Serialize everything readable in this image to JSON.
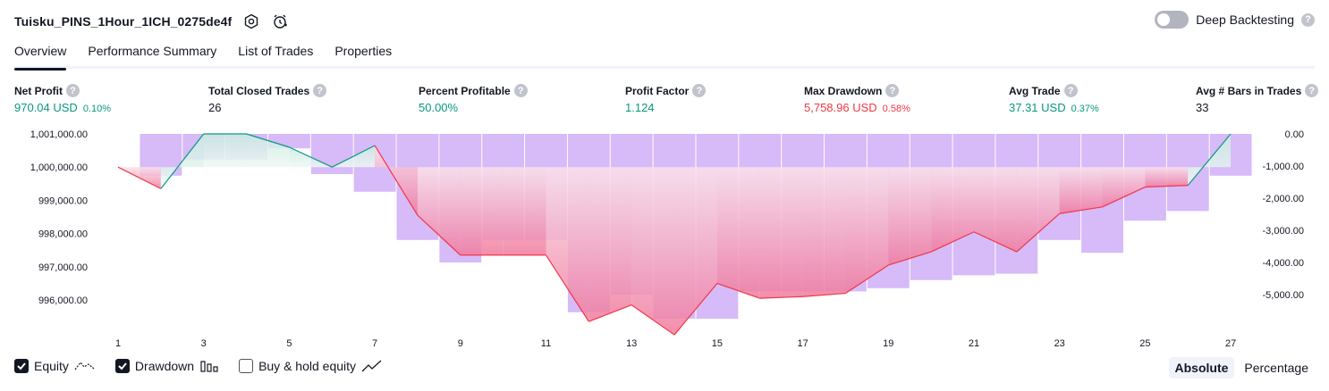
{
  "header": {
    "title": "Tuisku_PINS_1Hour_1ICH_0275de4f",
    "deep_backtesting_label": "Deep Backtesting",
    "help_glyph": "?"
  },
  "tabs": [
    {
      "label": "Overview",
      "active": true
    },
    {
      "label": "Performance Summary",
      "active": false
    },
    {
      "label": "List of Trades",
      "active": false
    },
    {
      "label": "Properties",
      "active": false
    }
  ],
  "metrics": [
    {
      "label": "Net Profit",
      "value": "970.04 USD",
      "pct": "0.10%",
      "color": "#089981"
    },
    {
      "label": "Total Closed Trades",
      "value": "26",
      "pct": "",
      "color": "#131722"
    },
    {
      "label": "Percent Profitable",
      "value": "50.00%",
      "pct": "",
      "color": "#089981"
    },
    {
      "label": "Profit Factor",
      "value": "1.124",
      "pct": "",
      "color": "#089981"
    },
    {
      "label": "Max Drawdown",
      "value": "5,758.96 USD",
      "pct": "0.58%",
      "color": "#f23645"
    },
    {
      "label": "Avg Trade",
      "value": "37.31 USD",
      "pct": "0.37%",
      "color": "#089981"
    },
    {
      "label": "Avg # Bars in Trades",
      "value": "33",
      "pct": "",
      "color": "#131722"
    }
  ],
  "chart_data": {
    "type": "line",
    "equity_axis_labels": [
      "1,001,000.00",
      "1,000,000.00",
      "999,000.00",
      "998,000.00",
      "997,000.00",
      "996,000.00"
    ],
    "equity_axis_values": [
      1001000,
      1000000,
      999000,
      998000,
      997000,
      996000
    ],
    "drawdown_axis_labels": [
      "0.00",
      "-1,000.00",
      "-2,000.00",
      "-3,000.00",
      "-4,000.00",
      "-5,000.00"
    ],
    "drawdown_axis_values": [
      0,
      -1000,
      -2000,
      -3000,
      -4000,
      -5000
    ],
    "x_tick_labels": [
      "1",
      "3",
      "5",
      "7",
      "9",
      "11",
      "13",
      "15",
      "17",
      "19",
      "21",
      "23",
      "25",
      "27"
    ],
    "x_ticks": [
      1,
      3,
      5,
      7,
      9,
      11,
      13,
      15,
      17,
      19,
      21,
      23,
      25,
      27
    ],
    "equity_ylim": [
      995200,
      1001100
    ],
    "drawdown_ylim": [
      -5900,
      100
    ],
    "series": [
      {
        "name": "Equity",
        "color": "#089981",
        "negative_color": "#f23645",
        "x": [
          1,
          2,
          3,
          4,
          5,
          6,
          7,
          8,
          9,
          10,
          11,
          12,
          13,
          14,
          15,
          16,
          17,
          18,
          19,
          20,
          21,
          22,
          23,
          24,
          25,
          26,
          27
        ],
        "values": [
          1000000,
          999350,
          1001000,
          1001000,
          1000600,
          1000000,
          1000650,
          998550,
          997350,
          997350,
          997350,
          995350,
          995850,
          994950,
          996500,
          996050,
          996100,
          996200,
          997050,
          997450,
          998050,
          997450,
          998600,
          998800,
          999400,
          999450,
          1001000
        ]
      },
      {
        "name": "Drawdown",
        "color": "#c9a3f5",
        "x": [
          2,
          3,
          4,
          5,
          6,
          7,
          8,
          9,
          10,
          11,
          12,
          13,
          14,
          15,
          16,
          17,
          18,
          19,
          20,
          21,
          22,
          23,
          24,
          25,
          26,
          27
        ],
        "values": [
          -1300,
          -800,
          -800,
          -450,
          -1250,
          -1800,
          -3300,
          -4000,
          -3300,
          -3300,
          -5550,
          -5000,
          -5750,
          -5750,
          -4900,
          -4900,
          -4900,
          -4800,
          -4550,
          -4400,
          -4350,
          -3300,
          -3700,
          -2700,
          -2400,
          -1300
        ]
      }
    ]
  },
  "legend": [
    {
      "label": "Equity",
      "checked": true,
      "icon": "equity-line-icon"
    },
    {
      "label": "Drawdown",
      "checked": true,
      "icon": "drawdown-bars-icon"
    },
    {
      "label": "Buy & hold equity",
      "checked": false,
      "icon": "buy-hold-line-icon"
    }
  ],
  "modes": [
    {
      "label": "Absolute",
      "active": true
    },
    {
      "label": "Percentage",
      "active": false
    }
  ]
}
